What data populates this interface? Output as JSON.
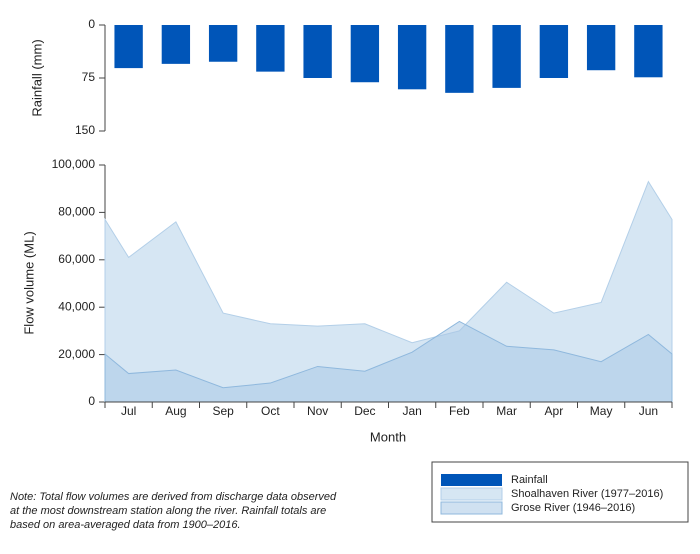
{
  "chart_data": [
    {
      "type": "bar",
      "y_label": "Rainfall (mm)",
      "inverted": true,
      "series": [
        {
          "name": "Rainfall",
          "color": "#0055b8",
          "values": [
            61,
            55,
            52,
            66,
            75,
            81,
            91,
            96,
            89,
            75,
            64,
            74
          ]
        }
      ],
      "ylim": [
        0,
        150
      ],
      "yticks": [
        0,
        75,
        150
      ]
    },
    {
      "type": "area",
      "x_label": "Month",
      "y_label": "Flow volume (ML)",
      "categories": [
        "Jul",
        "Aug",
        "Sep",
        "Oct",
        "Nov",
        "Dec",
        "Jan",
        "Feb",
        "Mar",
        "Apr",
        "May",
        "Jun"
      ],
      "series": [
        {
          "name": "Shoalhaven River (1977–2016)",
          "color": "#d6e6f3",
          "values": [
            61000,
            76000,
            37500,
            33000,
            32000,
            33000,
            25000,
            30000,
            50500,
            37500,
            42000,
            93000
          ]
        },
        {
          "name": "Grose River (1946–2016)",
          "color": "#a9c9e6",
          "values": [
            12000,
            13500,
            6000,
            8000,
            15000,
            13000,
            21000,
            34000,
            23500,
            22000,
            17000,
            28500
          ]
        }
      ],
      "ylim": [
        0,
        100000
      ],
      "yticks": [
        0,
        {
          "value": 20000,
          "label": "20,000"
        },
        {
          "value": 40000,
          "label": "40,000"
        },
        {
          "value": 60000,
          "label": "60,000"
        },
        {
          "value": 80000,
          "label": "80,000"
        },
        {
          "value": 100000,
          "label": "100,000"
        }
      ]
    }
  ],
  "note": [
    "Note: Total flow volumes are derived from discharge data observed",
    "at the most downstream station along the river. Rainfall totals are",
    "based on area-averaged data from 1900–2016."
  ]
}
